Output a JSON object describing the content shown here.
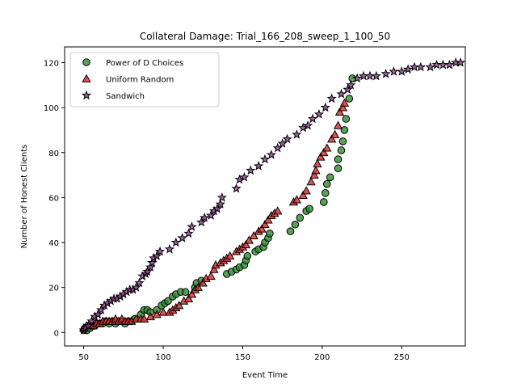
{
  "chart_data": {
    "type": "scatter",
    "title": "Collateral Damage: Trial_166_208_sweep_1_100_50",
    "xlabel": "Event Time",
    "ylabel": "Number of Honest Clients",
    "xlim": [
      38,
      290
    ],
    "ylim": [
      -6,
      127
    ],
    "xticks": [
      50,
      100,
      150,
      200,
      250
    ],
    "yticks": [
      0,
      20,
      40,
      60,
      80,
      100,
      120
    ],
    "grid": false,
    "legend_position": "upper-left",
    "series": [
      {
        "name": "Power of D Choices",
        "marker": "circle",
        "color": "#2e8b2e",
        "points": [
          [
            50,
            1
          ],
          [
            51,
            2
          ],
          [
            52,
            1
          ],
          [
            54,
            2
          ],
          [
            55,
            3
          ],
          [
            57,
            3
          ],
          [
            60,
            4
          ],
          [
            62,
            4
          ],
          [
            64,
            5
          ],
          [
            66,
            4
          ],
          [
            68,
            5
          ],
          [
            70,
            4
          ],
          [
            72,
            5
          ],
          [
            74,
            5
          ],
          [
            76,
            4
          ],
          [
            78,
            5
          ],
          [
            80,
            5
          ],
          [
            82,
            6
          ],
          [
            86,
            8
          ],
          [
            88,
            10
          ],
          [
            90,
            10
          ],
          [
            92,
            9
          ],
          [
            96,
            10
          ],
          [
            99,
            12
          ],
          [
            101,
            13
          ],
          [
            103,
            14
          ],
          [
            106,
            16
          ],
          [
            108,
            17
          ],
          [
            111,
            18
          ],
          [
            114,
            18
          ],
          [
            120,
            20
          ],
          [
            121,
            22
          ],
          [
            124,
            23
          ],
          [
            140,
            26
          ],
          [
            143,
            27
          ],
          [
            146,
            28
          ],
          [
            148,
            29
          ],
          [
            151,
            30
          ],
          [
            152,
            32
          ],
          [
            153,
            34
          ],
          [
            158,
            36
          ],
          [
            160,
            37
          ],
          [
            163,
            38
          ],
          [
            164,
            40
          ],
          [
            166,
            42
          ],
          [
            167,
            44
          ],
          [
            180,
            45
          ],
          [
            183,
            48
          ],
          [
            186,
            51
          ],
          [
            190,
            54
          ],
          [
            192,
            55
          ],
          [
            201,
            58
          ],
          [
            202,
            62
          ],
          [
            203,
            66
          ],
          [
            205,
            69
          ],
          [
            210,
            73
          ],
          [
            210,
            77
          ],
          [
            212,
            81
          ],
          [
            213,
            85
          ],
          [
            214,
            90
          ],
          [
            215,
            95
          ],
          [
            217,
            104
          ],
          [
            219,
            113
          ]
        ]
      },
      {
        "name": "Uniform Random",
        "marker": "triangle",
        "color": "#d62728",
        "points": [
          [
            50,
            2
          ],
          [
            52,
            3
          ],
          [
            56,
            3
          ],
          [
            58,
            4
          ],
          [
            60,
            4
          ],
          [
            62,
            5
          ],
          [
            64,
            5
          ],
          [
            66,
            5
          ],
          [
            68,
            5
          ],
          [
            70,
            6
          ],
          [
            72,
            5
          ],
          [
            74,
            6
          ],
          [
            76,
            5
          ],
          [
            78,
            5
          ],
          [
            80,
            5
          ],
          [
            83,
            6
          ],
          [
            86,
            6
          ],
          [
            88,
            6
          ],
          [
            92,
            7
          ],
          [
            96,
            8
          ],
          [
            100,
            9
          ],
          [
            104,
            9
          ],
          [
            106,
            10
          ],
          [
            108,
            11
          ],
          [
            110,
            12
          ],
          [
            113,
            14
          ],
          [
            116,
            15
          ],
          [
            118,
            17
          ],
          [
            120,
            19
          ],
          [
            122,
            20
          ],
          [
            125,
            22
          ],
          [
            127,
            24
          ],
          [
            130,
            25
          ],
          [
            132,
            28
          ],
          [
            133,
            30
          ],
          [
            136,
            31
          ],
          [
            138,
            32
          ],
          [
            140,
            33
          ],
          [
            142,
            34
          ],
          [
            146,
            36
          ],
          [
            148,
            37
          ],
          [
            150,
            38
          ],
          [
            152,
            39
          ],
          [
            154,
            41
          ],
          [
            157,
            43
          ],
          [
            160,
            45
          ],
          [
            162,
            46
          ],
          [
            164,
            48
          ],
          [
            166,
            50
          ],
          [
            168,
            52
          ],
          [
            170,
            53
          ],
          [
            172,
            54
          ],
          [
            182,
            58
          ],
          [
            184,
            59
          ],
          [
            188,
            61
          ],
          [
            190,
            63
          ],
          [
            193,
            67
          ],
          [
            195,
            70
          ],
          [
            196,
            72
          ],
          [
            197,
            75
          ],
          [
            199,
            78
          ],
          [
            201,
            80
          ],
          [
            203,
            82
          ],
          [
            206,
            86
          ],
          [
            208,
            88
          ],
          [
            210,
            92
          ],
          [
            211,
            98
          ],
          [
            213,
            100
          ],
          [
            214,
            102
          ]
        ]
      },
      {
        "name": "Sandwich",
        "marker": "star",
        "color": "#8b3a8b",
        "points": [
          [
            50,
            1
          ],
          [
            51,
            2
          ],
          [
            53,
            3
          ],
          [
            55,
            5
          ],
          [
            57,
            7
          ],
          [
            59,
            8
          ],
          [
            61,
            10
          ],
          [
            63,
            12
          ],
          [
            65,
            13
          ],
          [
            67,
            14
          ],
          [
            69,
            15
          ],
          [
            71,
            15
          ],
          [
            73,
            16
          ],
          [
            75,
            17
          ],
          [
            77,
            18
          ],
          [
            79,
            19
          ],
          [
            81,
            19
          ],
          [
            83,
            20
          ],
          [
            85,
            22
          ],
          [
            87,
            25
          ],
          [
            89,
            26
          ],
          [
            90,
            27
          ],
          [
            92,
            29
          ],
          [
            93,
            31
          ],
          [
            94,
            33
          ],
          [
            96,
            34
          ],
          [
            98,
            36
          ],
          [
            104,
            37
          ],
          [
            108,
            40
          ],
          [
            112,
            42
          ],
          [
            116,
            44
          ],
          [
            118,
            47
          ],
          [
            124,
            49
          ],
          [
            126,
            51
          ],
          [
            130,
            52
          ],
          [
            132,
            54
          ],
          [
            134,
            55
          ],
          [
            136,
            57
          ],
          [
            137,
            60
          ],
          [
            146,
            64
          ],
          [
            148,
            68
          ],
          [
            151,
            69
          ],
          [
            155,
            72
          ],
          [
            160,
            74
          ],
          [
            164,
            77
          ],
          [
            168,
            79
          ],
          [
            172,
            82
          ],
          [
            175,
            84
          ],
          [
            178,
            86
          ],
          [
            184,
            88
          ],
          [
            188,
            91
          ],
          [
            191,
            92
          ],
          [
            194,
            95
          ],
          [
            198,
            97
          ],
          [
            202,
            100
          ],
          [
            206,
            104
          ],
          [
            212,
            106
          ],
          [
            216,
            108
          ],
          [
            218,
            110
          ],
          [
            222,
            113
          ],
          [
            226,
            114
          ],
          [
            230,
            114
          ],
          [
            234,
            114
          ],
          [
            240,
            115
          ],
          [
            245,
            116
          ],
          [
            250,
            116
          ],
          [
            254,
            117
          ],
          [
            258,
            118
          ],
          [
            262,
            118
          ],
          [
            268,
            118
          ],
          [
            272,
            119
          ],
          [
            276,
            119
          ],
          [
            280,
            119
          ],
          [
            284,
            120
          ],
          [
            287,
            120
          ]
        ]
      }
    ]
  }
}
